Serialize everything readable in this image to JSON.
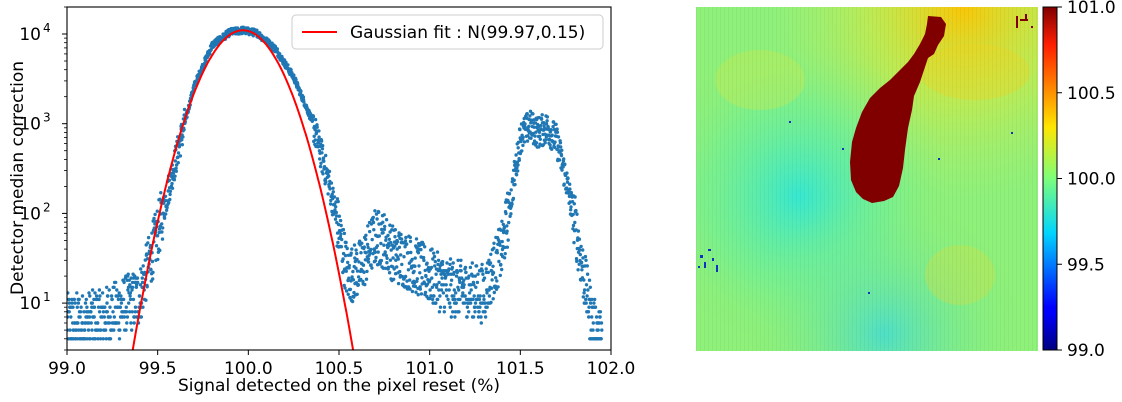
{
  "colors": {
    "scatter": "#1f77b4",
    "fit": "#ff0000"
  },
  "chart_data": [
    {
      "type": "scatter",
      "xlabel": "Signal detected on the pixel reset (%)",
      "ylabel": "Detector median correction",
      "xlim": [
        99.0,
        102.0
      ],
      "ylim": [
        3,
        20000
      ],
      "yscale": "log",
      "grid": false,
      "legend_position": "top-right",
      "x_ticks": [
        99.0,
        99.5,
        100.0,
        100.5,
        101.0,
        101.5,
        102.0
      ],
      "x_tick_labels": [
        "99.0",
        "99.5",
        "100.0",
        "100.5",
        "101.0",
        "101.5",
        "102.0"
      ],
      "y_ticks": [
        10,
        100,
        1000,
        10000
      ],
      "y_tick_labels": [
        {
          "base": "10",
          "exp": "1"
        },
        {
          "base": "10",
          "exp": "2"
        },
        {
          "base": "10",
          "exp": "3"
        },
        {
          "base": "10",
          "exp": "4"
        }
      ],
      "series": [
        {
          "kind": "scatter",
          "x": [
            99.0,
            99.2,
            99.4,
            99.5,
            99.6,
            99.7,
            99.8,
            99.9,
            99.97,
            100.05,
            100.15,
            100.25,
            100.35,
            100.45,
            100.55,
            100.62,
            100.7,
            100.75,
            100.8,
            100.9,
            101.0,
            101.1,
            101.2,
            101.3,
            101.4,
            101.45,
            101.5,
            101.55,
            101.6,
            101.65,
            101.7,
            101.75,
            101.8,
            101.85,
            101.9,
            101.95
          ],
          "y": [
            6,
            7,
            12,
            60,
            400,
            2600,
            7500,
            10500,
            11000,
            10200,
            6800,
            3300,
            1100,
            200,
            20,
            25,
            55,
            50,
            35,
            28,
            20,
            15,
            14,
            13,
            40,
            150,
            700,
            950,
            800,
            900,
            650,
            250,
            80,
            20,
            6,
            4
          ]
        },
        {
          "kind": "line",
          "name": "Gaussian fit : N(99.97,0.15)",
          "mu": 99.97,
          "sigma": 0.15,
          "amplitude": 11000
        }
      ]
    },
    {
      "type": "heatmap",
      "colorbar_range": [
        99.0,
        101.0
      ],
      "colorbar_ticks": [
        99.0,
        99.5,
        100.0,
        100.5,
        101.0
      ],
      "colorbar_tick_labels": [
        "99.0",
        "99.5",
        "100.0",
        "100.5",
        "101.0"
      ],
      "colormap": "jet"
    }
  ]
}
